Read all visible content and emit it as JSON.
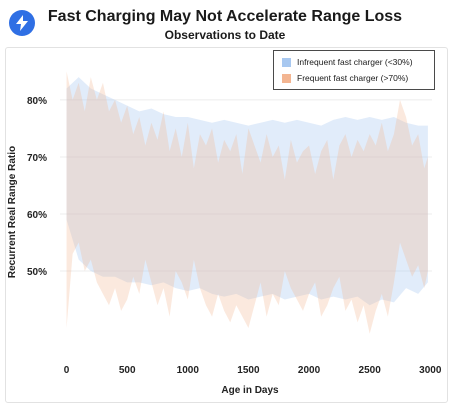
{
  "header": {
    "logo_icon": "lightning-bolt-icon"
  },
  "chart_data": {
    "type": "area",
    "title": "Fast Charging May Not Accelerate Range Loss",
    "subtitle": "Observations to Date",
    "xlabel": "Age in Days",
    "ylabel": "Recurrent Real Range Ratio",
    "xlim": [
      -120,
      3080
    ],
    "ylim": [
      0.365,
      0.87
    ],
    "x_ticks": [
      0,
      500,
      1000,
      1500,
      2000,
      2500,
      3000
    ],
    "x_tick_labels": [
      "0",
      "500",
      "1000",
      "1500",
      "2000",
      "2500",
      "3000"
    ],
    "y_ticks": [
      0.5,
      0.6,
      0.7,
      0.8
    ],
    "y_tick_labels": [
      "50%",
      "60%",
      "70%",
      "80%"
    ],
    "grid": {
      "y": true,
      "x": false
    },
    "legend_position": "top-right",
    "series": [
      {
        "name": "Infrequent fast charger (<30%)",
        "color": "#a8c8f0",
        "x": [
          0,
          100,
          200,
          300,
          400,
          500,
          600,
          700,
          800,
          900,
          1000,
          1100,
          1200,
          1300,
          1400,
          1500,
          1600,
          1700,
          1800,
          1900,
          2000,
          2100,
          2200,
          2300,
          2400,
          2500,
          2600,
          2700,
          2800,
          2900,
          2980
        ],
        "upper": [
          0.82,
          0.84,
          0.82,
          0.81,
          0.8,
          0.79,
          0.78,
          0.785,
          0.775,
          0.77,
          0.77,
          0.765,
          0.76,
          0.765,
          0.76,
          0.755,
          0.76,
          0.765,
          0.76,
          0.765,
          0.76,
          0.755,
          0.765,
          0.77,
          0.765,
          0.77,
          0.765,
          0.77,
          0.76,
          0.755,
          0.755
        ],
        "lower": [
          0.59,
          0.52,
          0.5,
          0.49,
          0.49,
          0.48,
          0.48,
          0.475,
          0.48,
          0.47,
          0.465,
          0.47,
          0.46,
          0.455,
          0.46,
          0.45,
          0.455,
          0.46,
          0.45,
          0.455,
          0.46,
          0.45,
          0.455,
          0.45,
          0.455,
          0.44,
          0.45,
          0.445,
          0.47,
          0.46,
          0.48
        ]
      },
      {
        "name": "Frequent fast charger (>70%)",
        "color": "#f3b591",
        "x": [
          0,
          50,
          100,
          150,
          200,
          250,
          300,
          350,
          400,
          450,
          500,
          550,
          600,
          650,
          700,
          750,
          800,
          850,
          900,
          950,
          1000,
          1050,
          1100,
          1150,
          1200,
          1250,
          1300,
          1350,
          1400,
          1450,
          1500,
          1550,
          1600,
          1650,
          1700,
          1750,
          1800,
          1850,
          1900,
          1950,
          2000,
          2050,
          2100,
          2150,
          2200,
          2250,
          2300,
          2350,
          2400,
          2450,
          2500,
          2550,
          2600,
          2650,
          2700,
          2750,
          2800,
          2850,
          2900,
          2950,
          2980
        ],
        "upper": [
          0.85,
          0.8,
          0.83,
          0.78,
          0.84,
          0.8,
          0.83,
          0.78,
          0.8,
          0.76,
          0.79,
          0.74,
          0.77,
          0.72,
          0.76,
          0.73,
          0.78,
          0.71,
          0.75,
          0.7,
          0.76,
          0.68,
          0.74,
          0.72,
          0.75,
          0.69,
          0.73,
          0.71,
          0.74,
          0.67,
          0.75,
          0.72,
          0.69,
          0.74,
          0.7,
          0.72,
          0.66,
          0.73,
          0.69,
          0.71,
          0.72,
          0.67,
          0.71,
          0.73,
          0.66,
          0.72,
          0.74,
          0.7,
          0.73,
          0.71,
          0.74,
          0.72,
          0.76,
          0.71,
          0.74,
          0.8,
          0.77,
          0.72,
          0.74,
          0.68,
          0.7
        ],
        "lower": [
          0.4,
          0.53,
          0.55,
          0.5,
          0.52,
          0.48,
          0.46,
          0.44,
          0.47,
          0.43,
          0.45,
          0.49,
          0.46,
          0.52,
          0.48,
          0.44,
          0.47,
          0.42,
          0.5,
          0.48,
          0.45,
          0.52,
          0.47,
          0.44,
          0.42,
          0.46,
          0.43,
          0.41,
          0.44,
          0.42,
          0.4,
          0.44,
          0.48,
          0.42,
          0.46,
          0.44,
          0.5,
          0.47,
          0.45,
          0.43,
          0.46,
          0.48,
          0.42,
          0.44,
          0.47,
          0.49,
          0.43,
          0.45,
          0.41,
          0.44,
          0.39,
          0.43,
          0.46,
          0.42,
          0.48,
          0.55,
          0.52,
          0.49,
          0.51,
          0.47,
          0.5
        ]
      }
    ]
  }
}
